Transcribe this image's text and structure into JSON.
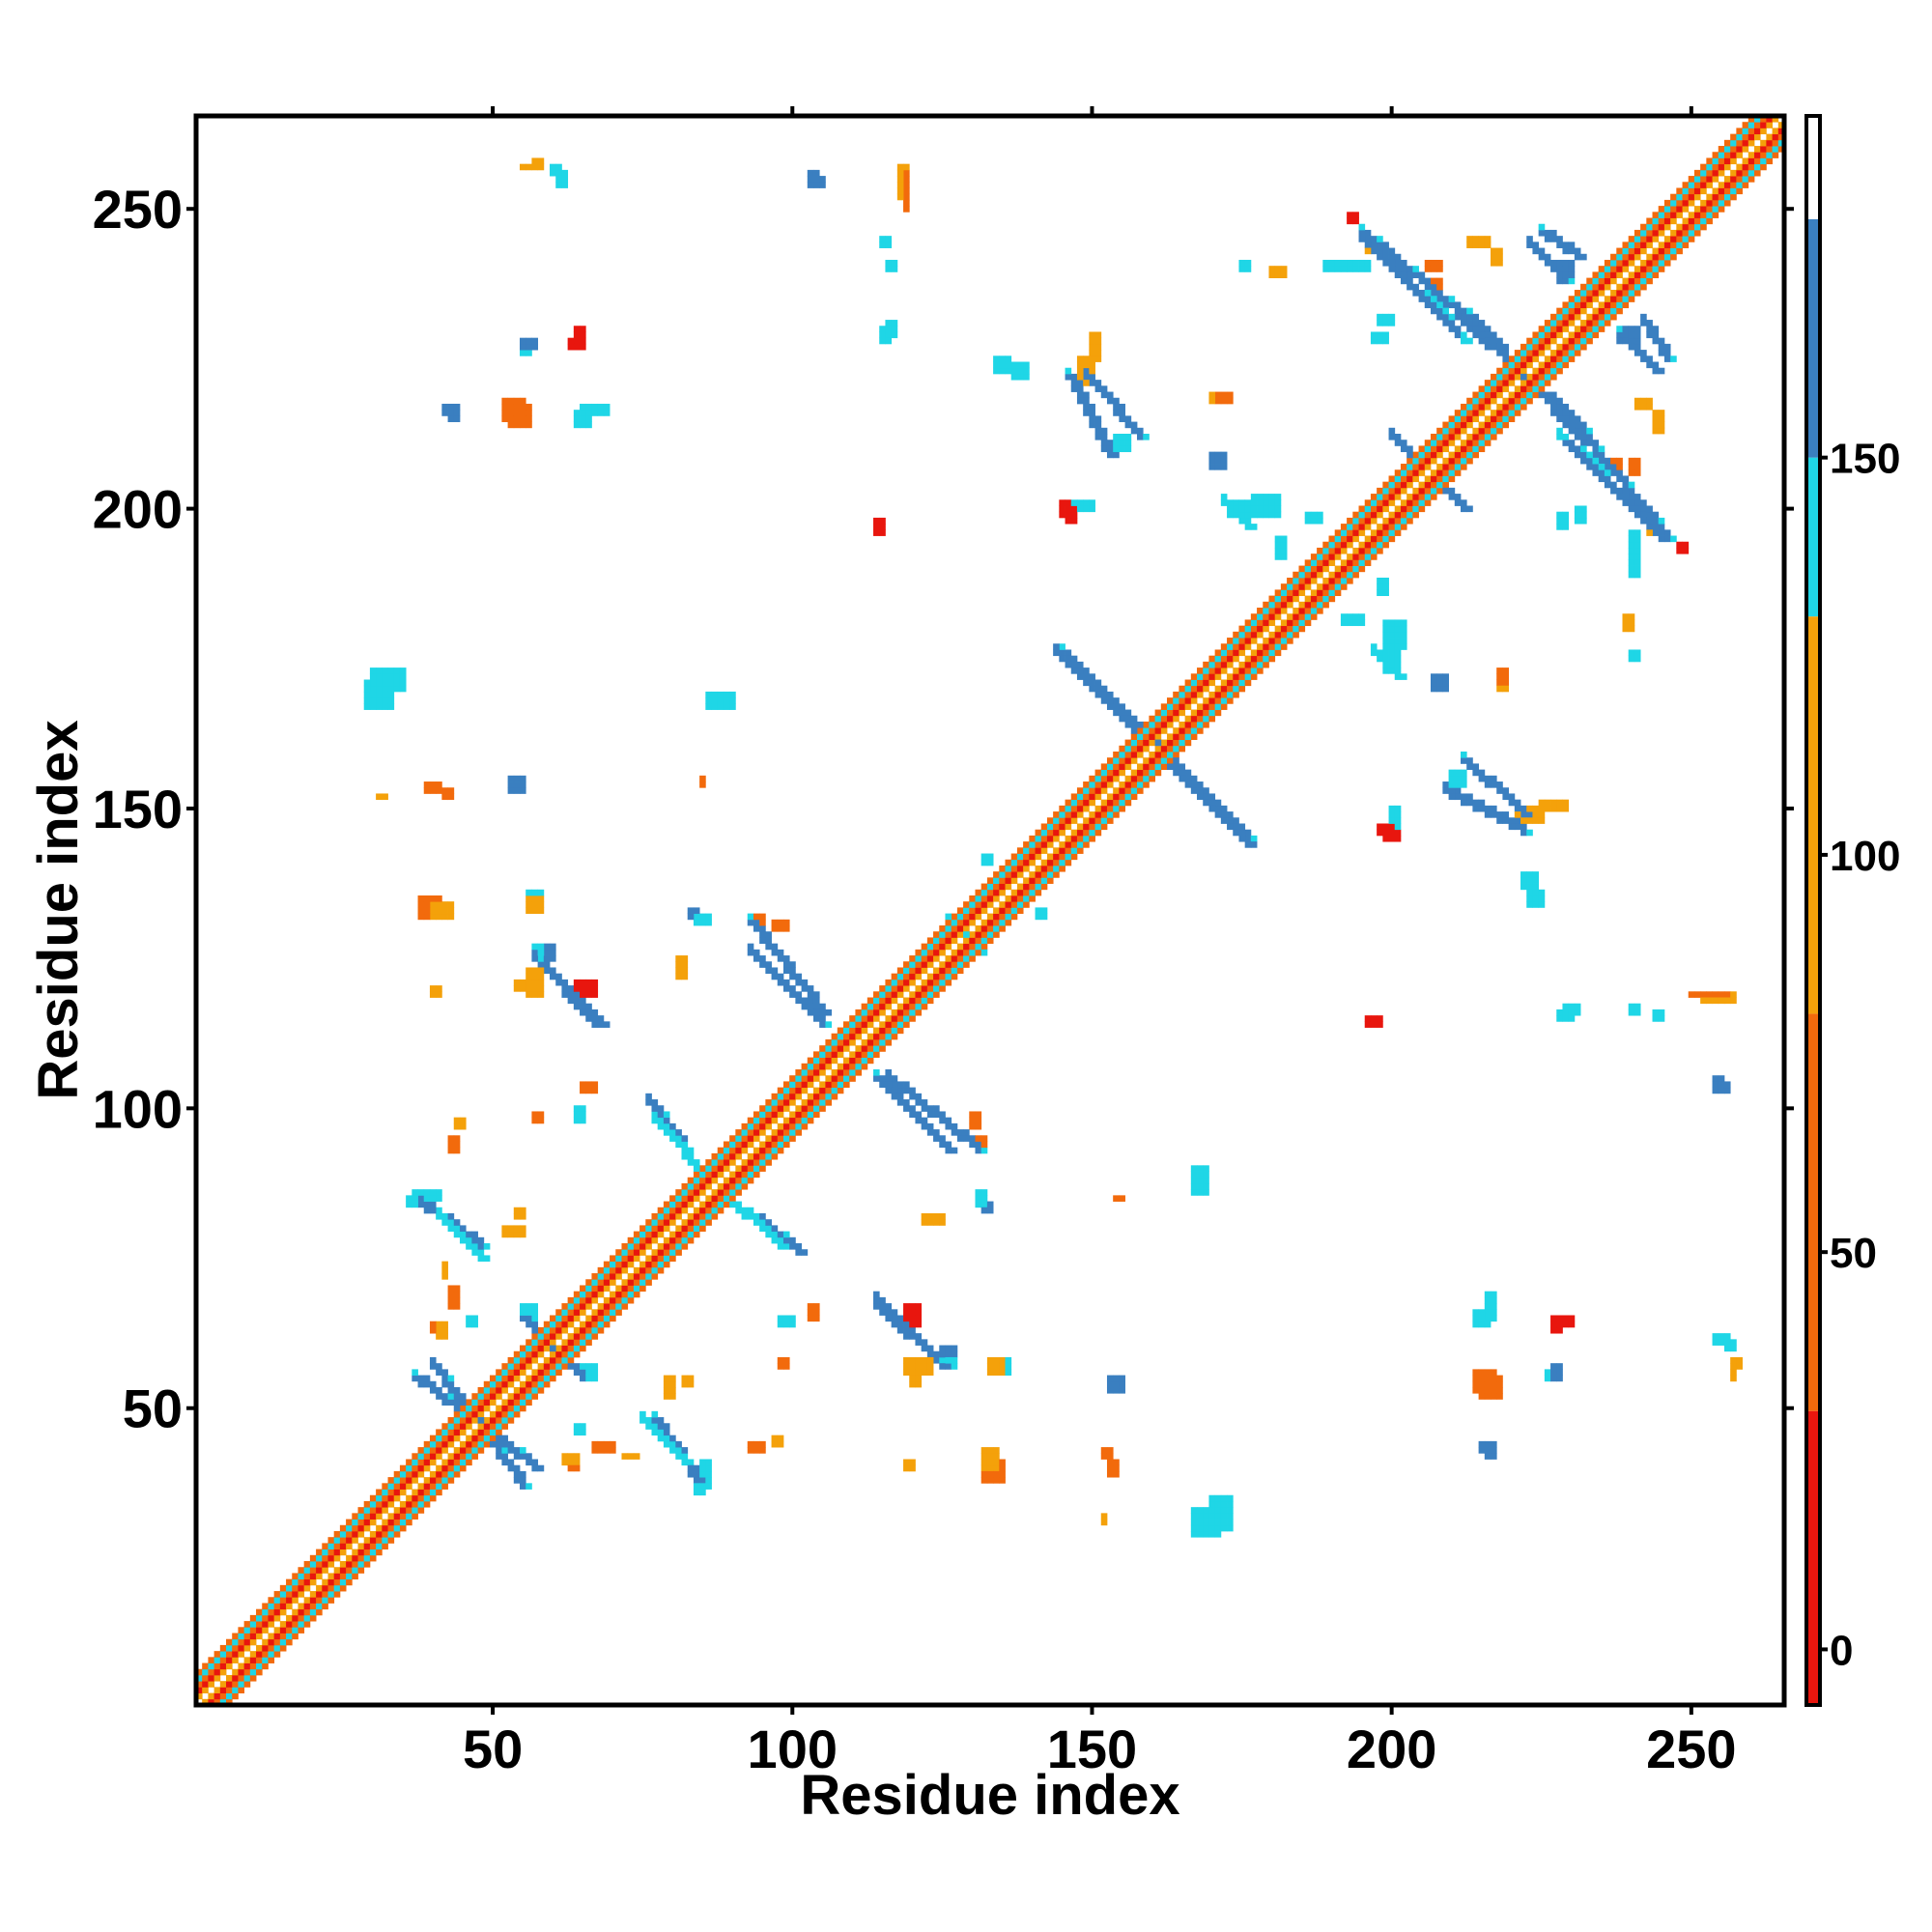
{
  "chart_data": {
    "type": "heatmap",
    "title": "",
    "xlabel": "Residue index",
    "ylabel": "Residue index",
    "xlim": [
      1,
      265
    ],
    "ylim": [
      1,
      265
    ],
    "x_ticks": [
      50,
      100,
      150,
      200,
      250
    ],
    "y_ticks": [
      50,
      100,
      150,
      200,
      250
    ],
    "grid": false,
    "symmetric": true,
    "colorbar": {
      "ticks": [
        0,
        50,
        100,
        150
      ],
      "range": [
        -7,
        193
      ],
      "bands": [
        {
          "from": -7,
          "to": 30,
          "color": "#e8160e"
        },
        {
          "from": 30,
          "to": 80,
          "color": "#f26a0c"
        },
        {
          "from": 80,
          "to": 130,
          "color": "#f4a10a"
        },
        {
          "from": 130,
          "to": 150,
          "color": "#1fd6e6"
        },
        {
          "from": 150,
          "to": 180,
          "color": "#3a7fc0"
        },
        {
          "from": 180,
          "to": 193,
          "color": "#ffffff"
        }
      ]
    },
    "colors": {
      "near": "#e8160e",
      "near_orange": "#f26a0c",
      "mid": "#f4a10a",
      "far_cyan": "#1fd6e6",
      "far_blue": "#3a7fc0"
    },
    "diagonal_band": {
      "offsets": [
        {
          "d": 1,
          "cat": "mid"
        },
        {
          "d": 2,
          "cat": "near"
        },
        {
          "d": 3,
          "cat": "near_orange"
        },
        {
          "d": 4,
          "cat": "far_cyan"
        },
        {
          "d": 5,
          "cat": "near_orange"
        }
      ]
    },
    "sheet_segments": [
      {
        "from": [
          37,
          55
        ],
        "to": [
          57,
          40
        ],
        "cat": "far_blue"
      },
      {
        "from": [
          41,
          82
        ],
        "to": [
          48,
          75
        ],
        "cat": "far_cyan"
      },
      {
        "from": [
          55,
          65
        ],
        "to": [
          65,
          55
        ],
        "cat": "far_blue"
      },
      {
        "from": [
          58,
          124
        ],
        "to": [
          68,
          114
        ],
        "cat": "far_blue"
      },
      {
        "from": [
          77,
          48
        ],
        "to": [
          84,
          38
        ],
        "cat": "far_blue"
      },
      {
        "from": [
          77,
          98
        ],
        "to": [
          86,
          88
        ],
        "cat": "far_cyan"
      },
      {
        "from": [
          93,
          82
        ],
        "to": [
          101,
          76
        ],
        "cat": "far_blue"
      },
      {
        "from": [
          93,
          131
        ],
        "to": [
          105,
          116
        ],
        "cat": "far_blue"
      },
      {
        "from": [
          114,
          67
        ],
        "to": [
          125,
          57
        ],
        "cat": "far_blue"
      },
      {
        "from": [
          114,
          105
        ],
        "to": [
          126,
          93
        ],
        "cat": "far_blue"
      },
      {
        "from": [
          145,
          176
        ],
        "to": [
          176,
          144
        ],
        "cat": "far_blue"
      },
      {
        "from": [
          146,
          222
        ],
        "to": [
          153,
          209
        ],
        "cat": "far_blue"
      },
      {
        "from": [
          195,
          246
        ],
        "to": [
          213,
          231
        ],
        "cat": "far_blue"
      },
      {
        "from": [
          207,
          205
        ],
        "to": [
          212,
          200
        ],
        "cat": "far_blue"
      },
      {
        "from": [
          212,
          158
        ],
        "to": [
          222,
          149
        ],
        "cat": "far_blue"
      },
      {
        "from": [
          213,
          232
        ],
        "to": [
          232,
          211
        ],
        "cat": "far_blue"
      },
      {
        "from": [
          225,
          246
        ],
        "to": [
          231,
          242
        ],
        "cat": "far_blue"
      },
      {
        "from": [
          229,
          211
        ],
        "to": [
          245,
          195
        ],
        "cat": "far_blue"
      },
      {
        "from": [
          238,
          229
        ],
        "to": [
          244,
          223
        ],
        "cat": "far_blue"
      },
      {
        "from": [
          228,
          212
        ],
        "to": [
          235,
          206
        ],
        "cat": "far_cyan"
      },
      {
        "from": [
          197,
          176
        ],
        "to": [
          201,
          172
        ],
        "cat": "far_cyan"
      }
    ],
    "blobs": [
      {
        "x": 30,
        "y": 170,
        "w": 6,
        "h": 4,
        "cat": "far_cyan"
      },
      {
        "x": 86,
        "y": 167,
        "w": 5,
        "h": 3,
        "cat": "far_cyan"
      },
      {
        "x": 53,
        "y": 214,
        "w": 4,
        "h": 4,
        "cat": "near_orange"
      },
      {
        "x": 65,
        "y": 216,
        "w": 5,
        "h": 2,
        "cat": "far_cyan"
      },
      {
        "x": 42,
        "y": 216,
        "w": 3,
        "h": 2,
        "cat": "far_blue"
      },
      {
        "x": 40,
        "y": 132,
        "w": 4,
        "h": 3,
        "cat": "mid"
      },
      {
        "x": 56,
        "y": 133,
        "w": 3,
        "h": 3,
        "cat": "mid"
      },
      {
        "x": 53,
        "y": 154,
        "w": 3,
        "h": 2,
        "cat": "far_blue"
      },
      {
        "x": 44,
        "y": 97,
        "w": 2,
        "h": 2,
        "cat": "mid"
      },
      {
        "x": 37,
        "y": 85,
        "w": 5,
        "h": 2,
        "cat": "far_cyan"
      },
      {
        "x": 52,
        "y": 79,
        "w": 4,
        "h": 2,
        "cat": "mid"
      },
      {
        "x": 65,
        "y": 103,
        "w": 3,
        "h": 2,
        "cat": "near_orange"
      },
      {
        "x": 84,
        "y": 131,
        "w": 3,
        "h": 2,
        "cat": "far_cyan"
      },
      {
        "x": 97,
        "y": 130,
        "w": 3,
        "h": 2,
        "cat": "near_orange"
      },
      {
        "x": 126,
        "y": 129,
        "w": 4,
        "h": 4,
        "cat": "far_cyan"
      },
      {
        "x": 131,
        "y": 93,
        "w": 2,
        "h": 3,
        "cat": "near_orange"
      },
      {
        "x": 132,
        "y": 83,
        "w": 2,
        "h": 2,
        "cat": "far_blue"
      },
      {
        "x": 119,
        "y": 64,
        "w": 3,
        "h": 4,
        "cat": "near"
      },
      {
        "x": 119,
        "y": 56,
        "w": 5,
        "h": 3,
        "cat": "mid"
      },
      {
        "x": 125,
        "y": 59,
        "w": 3,
        "h": 2,
        "cat": "far_blue"
      },
      {
        "x": 134,
        "y": 56,
        "w": 3,
        "h": 3,
        "cat": "far_cyan"
      },
      {
        "x": 132,
        "y": 38,
        "w": 4,
        "h": 4,
        "cat": "near_orange"
      },
      {
        "x": 98,
        "y": 64,
        "w": 3,
        "h": 2,
        "cat": "far_cyan"
      },
      {
        "x": 93,
        "y": 43,
        "w": 3,
        "h": 2,
        "cat": "near_orange"
      },
      {
        "x": 82,
        "y": 54,
        "w": 2,
        "h": 2,
        "cat": "mid"
      },
      {
        "x": 84,
        "y": 36,
        "w": 2,
        "h": 2,
        "cat": "far_cyan"
      },
      {
        "x": 67,
        "y": 43,
        "w": 4,
        "h": 2,
        "cat": "near_orange"
      },
      {
        "x": 62,
        "y": 41,
        "w": 3,
        "h": 2,
        "cat": "mid"
      },
      {
        "x": 64,
        "y": 46,
        "w": 2,
        "h": 2,
        "cat": "far_cyan"
      },
      {
        "x": 167,
        "y": 29,
        "w": 5,
        "h": 5,
        "cat": "far_cyan"
      },
      {
        "x": 167,
        "y": 86,
        "w": 3,
        "h": 3,
        "cat": "far_cyan"
      },
      {
        "x": 153,
        "y": 53,
        "w": 2,
        "h": 3,
        "cat": "far_blue"
      },
      {
        "x": 152,
        "y": 42,
        "w": 2,
        "h": 2,
        "cat": "near_orange"
      },
      {
        "x": 154,
        "y": 85,
        "w": 2,
        "h": 1,
        "cat": "near_orange"
      },
      {
        "x": 215,
        "y": 52,
        "w": 4,
        "h": 4,
        "cat": "near_orange"
      },
      {
        "x": 214,
        "y": 64,
        "w": 3,
        "h": 3,
        "cat": "far_cyan"
      },
      {
        "x": 215,
        "y": 43,
        "w": 2,
        "h": 2,
        "cat": "far_blue"
      },
      {
        "x": 228,
        "y": 64,
        "w": 3,
        "h": 2,
        "cat": "near"
      },
      {
        "x": 226,
        "y": 55,
        "w": 1,
        "h": 2,
        "cat": "far_cyan"
      },
      {
        "x": 254,
        "y": 61,
        "w": 3,
        "h": 2,
        "cat": "far_cyan"
      },
      {
        "x": 257,
        "y": 57,
        "w": 2,
        "h": 2,
        "cat": "mid"
      },
      {
        "x": 254,
        "y": 104,
        "w": 2,
        "h": 2,
        "cat": "far_blue"
      },
      {
        "x": 250,
        "y": 119,
        "w": 7,
        "h": 1,
        "cat": "near_orange"
      },
      {
        "x": 240,
        "y": 116,
        "w": 2,
        "h": 2,
        "cat": "far_cyan"
      },
      {
        "x": 229,
        "y": 116,
        "w": 3,
        "h": 2,
        "cat": "far_cyan"
      },
      {
        "x": 196,
        "y": 114,
        "w": 3,
        "h": 2,
        "cat": "near"
      },
      {
        "x": 222,
        "y": 137,
        "w": 3,
        "h": 3,
        "cat": "far_cyan"
      },
      {
        "x": 225,
        "y": 150,
        "w": 5,
        "h": 2,
        "cat": "mid"
      },
      {
        "x": 198,
        "y": 146,
        "w": 3,
        "h": 2,
        "cat": "near"
      },
      {
        "x": 200,
        "y": 149,
        "w": 2,
        "h": 2,
        "cat": "far_cyan"
      },
      {
        "x": 199,
        "y": 173,
        "w": 3,
        "h": 4,
        "cat": "far_cyan"
      },
      {
        "x": 207,
        "y": 170,
        "w": 2,
        "h": 3,
        "cat": "far_blue"
      },
      {
        "x": 218,
        "y": 171,
        "w": 2,
        "h": 3,
        "cat": "near_orange"
      },
      {
        "x": 192,
        "y": 181,
        "w": 4,
        "h": 2,
        "cat": "far_cyan"
      },
      {
        "x": 239,
        "y": 180,
        "w": 2,
        "h": 3,
        "cat": "mid"
      },
      {
        "x": 240,
        "y": 175,
        "w": 2,
        "h": 2,
        "cat": "far_cyan"
      },
      {
        "x": 231,
        "y": 198,
        "w": 2,
        "h": 3,
        "cat": "far_cyan"
      },
      {
        "x": 186,
        "y": 198,
        "w": 3,
        "h": 2,
        "cat": "far_cyan"
      },
      {
        "x": 177,
        "y": 199,
        "w": 5,
        "h": 4,
        "cat": "far_cyan"
      },
      {
        "x": 170,
        "y": 207,
        "w": 3,
        "h": 3,
        "cat": "far_blue"
      },
      {
        "x": 145,
        "y": 199,
        "w": 2,
        "h": 3,
        "cat": "near"
      },
      {
        "x": 147,
        "y": 200,
        "w": 3,
        "h": 2,
        "cat": "far_cyan"
      },
      {
        "x": 114,
        "y": 196,
        "w": 2,
        "h": 3,
        "cat": "near_orange"
      },
      {
        "x": 115,
        "y": 228,
        "w": 2,
        "h": 3,
        "cat": "far_cyan"
      },
      {
        "x": 115,
        "y": 244,
        "w": 2,
        "h": 2,
        "cat": "far_cyan"
      },
      {
        "x": 118,
        "y": 252,
        "w": 2,
        "h": 6,
        "cat": "mid"
      },
      {
        "x": 103,
        "y": 254,
        "w": 2,
        "h": 3,
        "cat": "far_blue"
      },
      {
        "x": 134,
        "y": 223,
        "w": 3,
        "h": 3,
        "cat": "far_cyan"
      },
      {
        "x": 148,
        "y": 221,
        "w": 3,
        "h": 5,
        "cat": "mid"
      },
      {
        "x": 154,
        "y": 210,
        "w": 3,
        "h": 3,
        "cat": "far_cyan"
      },
      {
        "x": 170,
        "y": 218,
        "w": 4,
        "h": 2,
        "cat": "mid"
      },
      {
        "x": 189,
        "y": 240,
        "w": 8,
        "h": 2,
        "cat": "far_cyan"
      },
      {
        "x": 193,
        "y": 248,
        "w": 2,
        "h": 2,
        "cat": "near"
      },
      {
        "x": 206,
        "y": 240,
        "w": 3,
        "h": 2,
        "cat": "near_orange"
      },
      {
        "x": 213,
        "y": 244,
        "w": 4,
        "h": 2,
        "cat": "mid"
      },
      {
        "x": 197,
        "y": 228,
        "w": 3,
        "h": 2,
        "cat": "far_cyan"
      },
      {
        "x": 238,
        "y": 228,
        "w": 4,
        "h": 3,
        "cat": "far_blue"
      },
      {
        "x": 241,
        "y": 217,
        "w": 3,
        "h": 2,
        "cat": "mid"
      },
      {
        "x": 237,
        "y": 207,
        "w": 2,
        "h": 2,
        "cat": "near_orange"
      },
      {
        "x": 243,
        "y": 196,
        "w": 3,
        "h": 2,
        "cat": "mid"
      },
      {
        "x": 55,
        "y": 227,
        "w": 3,
        "h": 2,
        "cat": "far_blue"
      },
      {
        "x": 63,
        "y": 227,
        "w": 3,
        "h": 2,
        "cat": "near"
      },
      {
        "x": 55,
        "y": 257,
        "w": 3,
        "h": 1,
        "cat": "mid"
      },
      {
        "x": 60,
        "y": 256,
        "w": 2,
        "h": 2,
        "cat": "far_cyan"
      },
      {
        "x": 31,
        "y": 152,
        "w": 2,
        "h": 1,
        "cat": "mid"
      },
      {
        "x": 39,
        "y": 153,
        "w": 3,
        "h": 2,
        "cat": "near_orange"
      },
      {
        "x": 40,
        "y": 119,
        "w": 2,
        "h": 2,
        "cat": "mid"
      },
      {
        "x": 54,
        "y": 120,
        "w": 3,
        "h": 2,
        "cat": "mid"
      },
      {
        "x": 57,
        "y": 125,
        "w": 2,
        "h": 3,
        "cat": "far_cyan"
      },
      {
        "x": 55,
        "y": 65,
        "w": 3,
        "h": 3,
        "cat": "far_cyan"
      },
      {
        "x": 40,
        "y": 63,
        "w": 3,
        "h": 2,
        "cat": "near_orange"
      },
      {
        "x": 42,
        "y": 72,
        "w": 1,
        "h": 3,
        "cat": "mid"
      },
      {
        "x": 141,
        "y": 132,
        "w": 2,
        "h": 2,
        "cat": "far_cyan"
      },
      {
        "x": 122,
        "y": 81,
        "w": 4,
        "h": 2,
        "cat": "mid"
      },
      {
        "x": 98,
        "y": 57,
        "w": 2,
        "h": 2,
        "cat": "near_orange"
      }
    ]
  }
}
